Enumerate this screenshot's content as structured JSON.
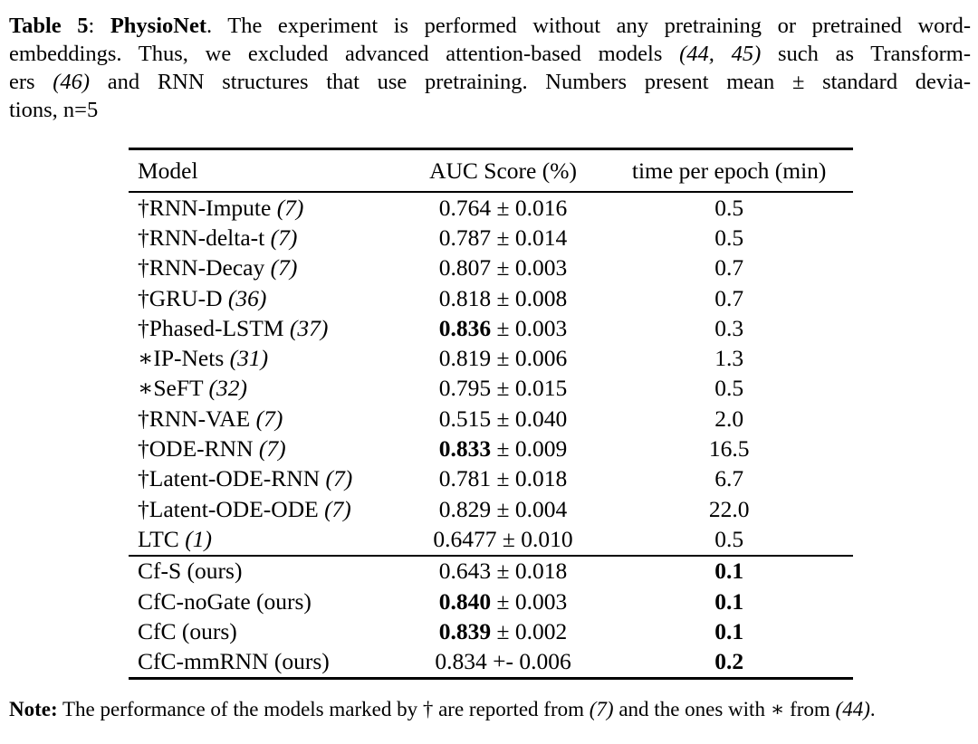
{
  "page": {
    "background": "#ffffff",
    "text_color": "#000000"
  },
  "caption": {
    "lines": [
      {
        "justify": true,
        "segments": [
          {
            "t": "Table 5",
            "b": true
          },
          {
            "t": ": "
          },
          {
            "t": "PhysioNet",
            "b": true
          },
          {
            "t": ". The experiment is performed without any pretraining or pretrained word-"
          }
        ]
      },
      {
        "justify": true,
        "segments": [
          {
            "t": "embeddings. Thus, we excluded advanced attention-based models "
          },
          {
            "t": "(44, 45)",
            "i": true
          },
          {
            "t": " such as Transform-"
          }
        ]
      },
      {
        "justify": true,
        "segments": [
          {
            "t": "ers "
          },
          {
            "t": "(46)",
            "i": true
          },
          {
            "t": " and RNN structures that use pretraining.  Numbers present mean ± standard devia-"
          }
        ]
      },
      {
        "justify": false,
        "segments": [
          {
            "t": "tions, n=5"
          }
        ]
      }
    ]
  },
  "table": {
    "headers": [
      "Model",
      "AUC Score (%)",
      "time per epoch (min)"
    ],
    "rows": [
      {
        "model": [
          {
            "t": "†RNN-Impute "
          },
          {
            "t": "(7)",
            "i": true
          }
        ],
        "auc": [
          {
            "t": "0.764 ± 0.016"
          }
        ],
        "time": [
          {
            "t": "0.5"
          }
        ]
      },
      {
        "model": [
          {
            "t": "†RNN-delta-t "
          },
          {
            "t": "(7)",
            "i": true
          }
        ],
        "auc": [
          {
            "t": "0.787 ± 0.014"
          }
        ],
        "time": [
          {
            "t": "0.5"
          }
        ]
      },
      {
        "model": [
          {
            "t": "†RNN-Decay "
          },
          {
            "t": "(7)",
            "i": true
          }
        ],
        "auc": [
          {
            "t": "0.807 ± 0.003"
          }
        ],
        "time": [
          {
            "t": "0.7"
          }
        ]
      },
      {
        "model": [
          {
            "t": "†GRU-D "
          },
          {
            "t": "(36)",
            "i": true
          }
        ],
        "auc": [
          {
            "t": "0.818 ± 0.008"
          }
        ],
        "time": [
          {
            "t": "0.7"
          }
        ]
      },
      {
        "model": [
          {
            "t": "†Phased-LSTM "
          },
          {
            "t": "(37)",
            "i": true
          }
        ],
        "auc": [
          {
            "t": "0.836",
            "b": true
          },
          {
            "t": " ± 0.003"
          }
        ],
        "time": [
          {
            "t": "0.3"
          }
        ]
      },
      {
        "model": [
          {
            "t": "∗IP-Nets "
          },
          {
            "t": "(31)",
            "i": true
          }
        ],
        "auc": [
          {
            "t": "0.819 ± 0.006"
          }
        ],
        "time": [
          {
            "t": "1.3"
          }
        ]
      },
      {
        "model": [
          {
            "t": "∗SeFT "
          },
          {
            "t": "(32)",
            "i": true
          }
        ],
        "auc": [
          {
            "t": "0.795 ± 0.015"
          }
        ],
        "time": [
          {
            "t": "0.5"
          }
        ]
      },
      {
        "model": [
          {
            "t": "†RNN-VAE "
          },
          {
            "t": "(7)",
            "i": true
          }
        ],
        "auc": [
          {
            "t": "0.515 ± 0.040"
          }
        ],
        "time": [
          {
            "t": "2.0"
          }
        ]
      },
      {
        "model": [
          {
            "t": "†ODE-RNN "
          },
          {
            "t": "(7)",
            "i": true
          }
        ],
        "auc": [
          {
            "t": "0.833",
            "b": true
          },
          {
            "t": " ± 0.009"
          }
        ],
        "time": [
          {
            "t": "16.5"
          }
        ]
      },
      {
        "model": [
          {
            "t": "†Latent-ODE-RNN "
          },
          {
            "t": "(7)",
            "i": true
          }
        ],
        "auc": [
          {
            "t": "0.781 ± 0.018"
          }
        ],
        "time": [
          {
            "t": "6.7"
          }
        ]
      },
      {
        "model": [
          {
            "t": "†Latent-ODE-ODE "
          },
          {
            "t": "(7)",
            "i": true
          }
        ],
        "auc": [
          {
            "t": "0.829 ± 0.004"
          }
        ],
        "time": [
          {
            "t": "22.0"
          }
        ]
      },
      {
        "model": [
          {
            "t": "LTC "
          },
          {
            "t": "(1)",
            "i": true
          }
        ],
        "auc": [
          {
            "t": "0.6477 ± 0.010"
          }
        ],
        "time": [
          {
            "t": "0.5"
          }
        ],
        "rule_after": true
      },
      {
        "model": [
          {
            "t": "Cf-S (ours)"
          }
        ],
        "auc": [
          {
            "t": "0.643 ± 0.018"
          }
        ],
        "time": [
          {
            "t": "0.1",
            "b": true
          }
        ]
      },
      {
        "model": [
          {
            "t": "CfC-noGate (ours)"
          }
        ],
        "auc": [
          {
            "t": "0.840",
            "b": true
          },
          {
            "t": " ± 0.003"
          }
        ],
        "time": [
          {
            "t": "0.1",
            "b": true
          }
        ]
      },
      {
        "model": [
          {
            "t": "CfC (ours)"
          }
        ],
        "auc": [
          {
            "t": "0.839",
            "b": true
          },
          {
            "t": " ± 0.002"
          }
        ],
        "time": [
          {
            "t": "0.1",
            "b": true
          }
        ]
      },
      {
        "model": [
          {
            "t": "CfC-mmRNN (ours)"
          }
        ],
        "auc": [
          {
            "t": "0.834 +- 0.006"
          }
        ],
        "time": [
          {
            "t": "0.2",
            "b": true
          }
        ]
      }
    ]
  },
  "note": {
    "segments": [
      {
        "t": "Note:",
        "b": true
      },
      {
        "t": " The performance of the models marked by † are reported from "
      },
      {
        "t": "(7)",
        "i": true
      },
      {
        "t": " and the ones with ∗ from "
      },
      {
        "t": "(44)",
        "i": true
      },
      {
        "t": "."
      }
    ]
  }
}
